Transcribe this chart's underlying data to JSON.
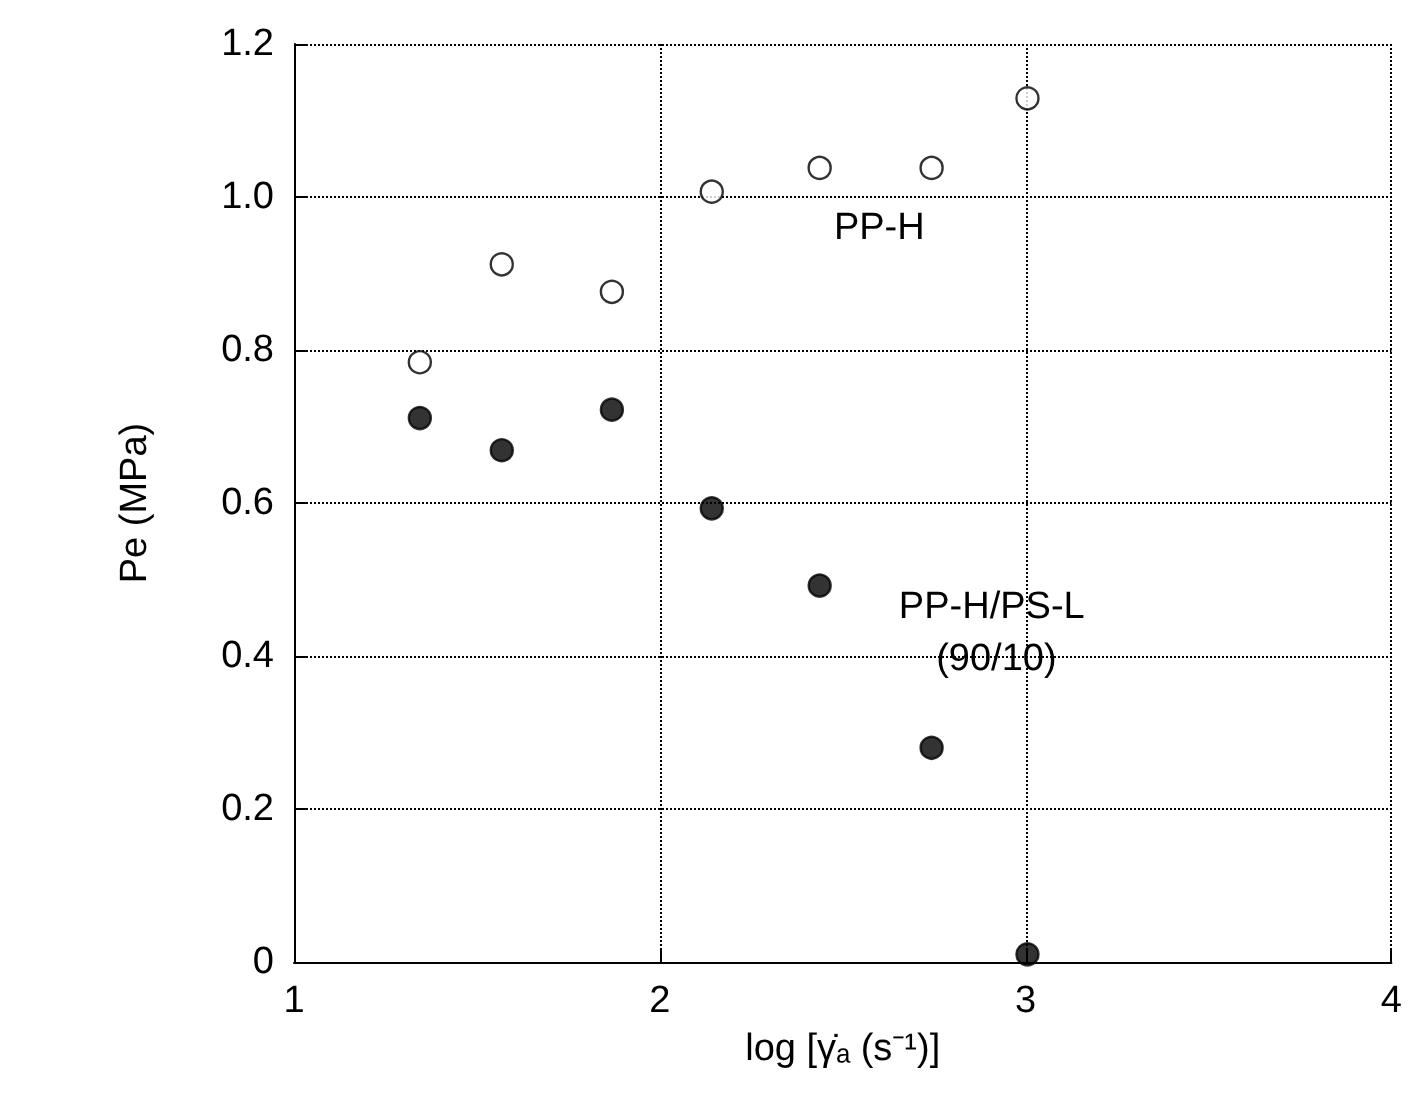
{
  "chart_data": {
    "type": "scatter",
    "xlabel": "log [γ̇ₐ (s⁻¹)]",
    "ylabel": "Pe (MPa)",
    "x": [
      1.344,
      1.568,
      1.869,
      2.142,
      2.437,
      2.743,
      3.005
    ],
    "series": [
      {
        "name": "PP-H",
        "color": "#ffffff",
        "values": [
          0.784,
          0.912,
          0.876,
          1.007,
          1.038,
          1.038,
          1.129
        ]
      },
      {
        "name": "PP-H/PS-L (90/10)",
        "color": "#000000",
        "values": [
          0.711,
          0.669,
          0.722,
          0.593,
          0.492,
          0.28,
          0.01
        ]
      }
    ],
    "xlim": [
      1,
      4
    ],
    "xticks": [
      1,
      2,
      3,
      4
    ],
    "ylim": [
      0,
      1.2
    ],
    "yticks": [
      0,
      0.2,
      0.4,
      0.6,
      0.8,
      {
        "value": 1,
        "label": "1.0"
      },
      1.2
    ],
    "grid": true,
    "marker": "circle",
    "legend": false
  }
}
